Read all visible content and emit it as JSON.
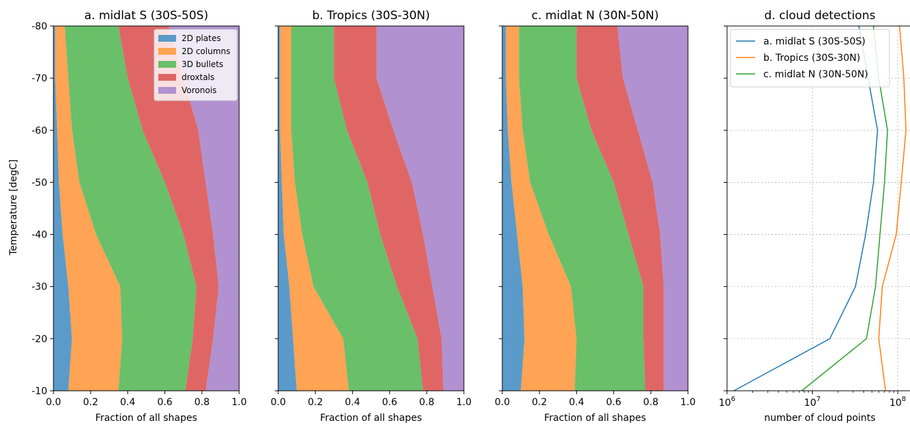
{
  "figure": {
    "ylabel": "Temperature [degC]",
    "yticks": [
      "-80",
      "-70",
      "-60",
      "-50",
      "-40",
      "-30",
      "-20",
      "-10"
    ]
  },
  "chart_data": [
    {
      "type": "area",
      "title": "a. midlat S (30S-50S)",
      "xlabel": "Fraction of all shapes",
      "xlim": [
        0,
        1
      ],
      "ylim": [
        -10,
        -80
      ],
      "xticks": [
        "0.0",
        "0.2",
        "0.4",
        "0.6",
        "0.8",
        "1.0"
      ],
      "stacked": true,
      "legend": "top-right",
      "y": [
        -10,
        -20,
        -30,
        -40,
        -50,
        -60,
        -70,
        -80
      ],
      "series": [
        {
          "name": "2D plates",
          "color": "#5b9bc9",
          "cumulative": [
            0.08,
            0.1,
            0.08,
            0.05,
            0.03,
            0.02,
            0.01,
            0.01
          ]
        },
        {
          "name": "2D columns",
          "color": "#ffa354",
          "cumulative": [
            0.35,
            0.37,
            0.36,
            0.23,
            0.14,
            0.1,
            0.08,
            0.06
          ]
        },
        {
          "name": "3D bullets",
          "color": "#6abf69",
          "cumulative": [
            0.71,
            0.75,
            0.77,
            0.7,
            0.6,
            0.48,
            0.4,
            0.35
          ]
        },
        {
          "name": "droxtals",
          "color": "#e06666",
          "cumulative": [
            0.82,
            0.86,
            0.89,
            0.86,
            0.82,
            0.78,
            0.7,
            0.62
          ]
        },
        {
          "name": "Voronois",
          "color": "#b191d0",
          "cumulative": [
            1.0,
            1.0,
            1.0,
            1.0,
            1.0,
            1.0,
            1.0,
            1.0
          ]
        }
      ]
    },
    {
      "type": "area",
      "title": "b. Tropics (30S-30N)",
      "xlabel": "Fraction of all shapes",
      "xlim": [
        0,
        1
      ],
      "ylim": [
        -10,
        -80
      ],
      "xticks": [
        "0.0",
        "0.2",
        "0.4",
        "0.6",
        "0.8",
        "1.0"
      ],
      "stacked": true,
      "y": [
        -10,
        -20,
        -30,
        -40,
        -50,
        -60,
        -70,
        -80
      ],
      "series": [
        {
          "name": "2D plates",
          "color": "#5b9bc9",
          "cumulative": [
            0.1,
            0.08,
            0.06,
            0.03,
            0.02,
            0.01,
            0.01,
            0.01
          ]
        },
        {
          "name": "2D columns",
          "color": "#ffa354",
          "cumulative": [
            0.38,
            0.35,
            0.19,
            0.13,
            0.09,
            0.07,
            0.07,
            0.07
          ]
        },
        {
          "name": "3D bullets",
          "color": "#6abf69",
          "cumulative": [
            0.78,
            0.75,
            0.64,
            0.55,
            0.48,
            0.37,
            0.3,
            0.3
          ]
        },
        {
          "name": "droxtals",
          "color": "#e06666",
          "cumulative": [
            0.89,
            0.88,
            0.83,
            0.78,
            0.72,
            0.62,
            0.53,
            0.53
          ]
        },
        {
          "name": "Voronois",
          "color": "#b191d0",
          "cumulative": [
            1.0,
            1.0,
            1.0,
            1.0,
            1.0,
            1.0,
            1.0,
            1.0
          ]
        }
      ]
    },
    {
      "type": "area",
      "title": "c. midlat N (30N-50N)",
      "xlabel": "Fraction of all shapes",
      "xlim": [
        0,
        1
      ],
      "ylim": [
        -10,
        -80
      ],
      "xticks": [
        "0.0",
        "0.2",
        "0.4",
        "0.6",
        "0.8",
        "1.0"
      ],
      "stacked": true,
      "y": [
        -10,
        -20,
        -30,
        -40,
        -50,
        -60,
        -70,
        -80
      ],
      "series": [
        {
          "name": "2D plates",
          "color": "#5b9bc9",
          "cumulative": [
            0.1,
            0.12,
            0.11,
            0.08,
            0.05,
            0.03,
            0.02,
            0.02
          ]
        },
        {
          "name": "2D columns",
          "color": "#ffa354",
          "cumulative": [
            0.39,
            0.4,
            0.37,
            0.25,
            0.15,
            0.11,
            0.09,
            0.09
          ]
        },
        {
          "name": "3D bullets",
          "color": "#6abf69",
          "cumulative": [
            0.77,
            0.76,
            0.76,
            0.68,
            0.6,
            0.48,
            0.4,
            0.4
          ]
        },
        {
          "name": "droxtals",
          "color": "#e06666",
          "cumulative": [
            0.87,
            0.87,
            0.87,
            0.85,
            0.81,
            0.73,
            0.65,
            0.62
          ]
        },
        {
          "name": "Voronois",
          "color": "#b191d0",
          "cumulative": [
            1.0,
            1.0,
            1.0,
            1.0,
            1.0,
            1.0,
            1.0,
            1.0
          ]
        }
      ]
    },
    {
      "type": "line",
      "title": "d. cloud detections",
      "xlabel": "number of cloud points",
      "xscale": "log",
      "xlim": [
        1000000,
        150000000
      ],
      "ylim": [
        -10,
        -80
      ],
      "xticks": [
        1000000,
        10000000,
        100000000
      ],
      "grid": true,
      "legend": "top-left",
      "y": [
        -10,
        -20,
        -30,
        -40,
        -50,
        -60,
        -70,
        -80
      ],
      "series": [
        {
          "name": "a. midlat S (30S-50S)",
          "color": "#1f77b4",
          "x": [
            1200000,
            16000000,
            32000000,
            42000000,
            52000000,
            58000000,
            45000000,
            35000000
          ]
        },
        {
          "name": "b. Tropics (30S-30N)",
          "color": "#ff7f0e",
          "x": [
            72000000,
            60000000,
            66000000,
            96000000,
            110000000,
            125000000,
            118000000,
            105000000
          ]
        },
        {
          "name": "c. midlat N (30N-50N)",
          "color": "#2ca02c",
          "x": [
            7500000,
            43000000,
            55000000,
            62000000,
            70000000,
            76000000,
            60000000,
            52000000
          ]
        }
      ]
    }
  ]
}
